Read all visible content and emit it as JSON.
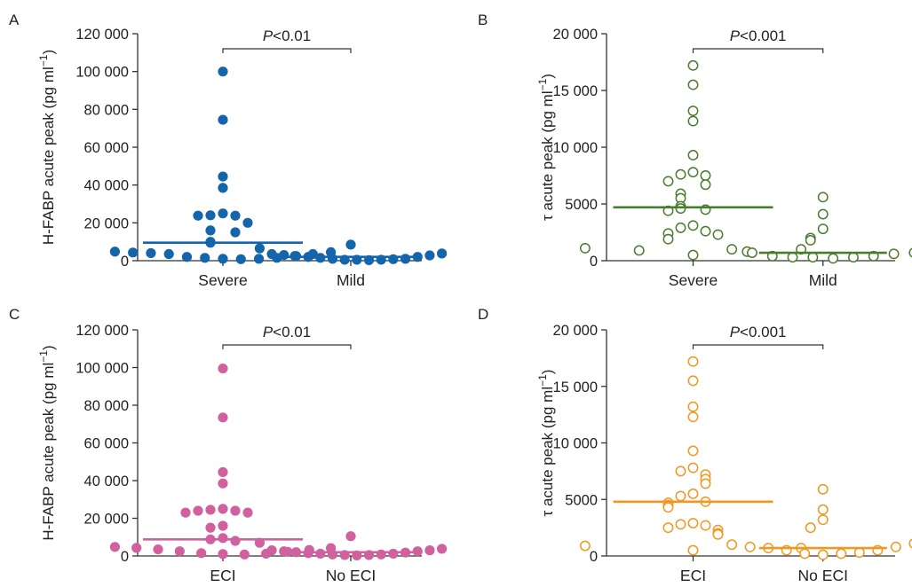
{
  "chart_data": [
    {
      "panel": "A",
      "type": "scatter",
      "ylabel": "H-FABP acute peak (pg ml−1)",
      "ylabel_parts": [
        "H-FABP acute peak (pg ml",
        "−1",
        ")"
      ],
      "ylim": [
        0,
        120000
      ],
      "yticks": [
        0,
        20000,
        40000,
        60000,
        80000,
        100000,
        120000
      ],
      "ytick_labels": [
        "0",
        "20 000",
        "40 000",
        "60 000",
        "80 000",
        "100 000",
        "120 000"
      ],
      "categories": [
        "Severe",
        "Mild"
      ],
      "marker": "filled",
      "color": "#1565ad",
      "significance": {
        "prefix": "P",
        "text": "<0.01"
      },
      "series": [
        {
          "category": "Severe",
          "median": 9500,
          "values": [
            100000,
            74500,
            44500,
            38500,
            25000,
            23800,
            24000,
            23800,
            20000,
            16000,
            15000,
            10000,
            9500,
            4800,
            4300,
            4000,
            3500,
            2000,
            1500,
            1000,
            800,
            1000,
            1500,
            2500,
            3500,
            4500
          ]
        },
        {
          "category": "Mild",
          "median": 2000,
          "values": [
            6500,
            8500,
            3500,
            3000,
            2500,
            2000,
            1500,
            1000,
            500,
            500,
            300,
            500,
            800,
            1000,
            2000,
            2800,
            3800
          ]
        }
      ]
    },
    {
      "panel": "B",
      "type": "scatter",
      "ylabel": "τ acute peak (pg ml−1)",
      "ylabel_parts": [
        "τ acute peak (pg ml",
        "−1",
        ")"
      ],
      "ylim": [
        0,
        20000
      ],
      "yticks": [
        0,
        5000,
        10000,
        15000,
        20000
      ],
      "ytick_labels": [
        "0",
        "5000",
        "10 000",
        "15 000",
        "20 000"
      ],
      "categories": [
        "Severe",
        "Mild"
      ],
      "marker": "open",
      "color": "#4a7c30",
      "significance": {
        "prefix": "P",
        "text": "<0.001"
      },
      "series": [
        {
          "category": "Severe",
          "median": 4700,
          "values": [
            17200,
            15500,
            13200,
            12300,
            9300,
            7800,
            7500,
            7600,
            7000,
            6700,
            5900,
            5500,
            4800,
            4500,
            4400,
            4600,
            3100,
            2900,
            2600,
            2300,
            2400,
            1900,
            1100,
            900,
            500,
            800,
            1000
          ]
        },
        {
          "category": "Mild",
          "median": 700,
          "values": [
            5600,
            4100,
            2800,
            2000,
            1800,
            1000,
            700,
            400,
            300,
            300,
            200,
            300,
            400,
            600,
            700
          ]
        }
      ]
    },
    {
      "panel": "C",
      "type": "scatter",
      "ylabel": "H-FABP acute peak (pg ml−1)",
      "ylabel_parts": [
        "H-FABP acute peak (pg ml",
        "−1",
        ")"
      ],
      "ylim": [
        0,
        120000
      ],
      "yticks": [
        0,
        20000,
        40000,
        60000,
        80000,
        100000,
        120000
      ],
      "ytick_labels": [
        "0",
        "20 000",
        "40 000",
        "60 000",
        "80 000",
        "100 000",
        "120 000"
      ],
      "categories": [
        "ECI",
        "No ECI"
      ],
      "marker": "filled",
      "color": "#d0609e",
      "significance": {
        "prefix": "P",
        "text": "<0.01"
      },
      "series": [
        {
          "category": "ECI",
          "median": 8800,
          "values": [
            99500,
            73500,
            44500,
            38500,
            25000,
            24000,
            23000,
            24500,
            23000,
            24000,
            16000,
            15000,
            9500,
            8800,
            8000,
            4800,
            4300,
            3500,
            2500,
            1500,
            1000,
            800,
            1200,
            2200,
            3200,
            4200
          ]
        },
        {
          "category": "No ECI",
          "median": 2000,
          "values": [
            10500,
            7000,
            3000,
            2500,
            2000,
            1500,
            1200,
            800,
            500,
            300,
            500,
            800,
            1200,
            1800,
            2500,
            3000,
            3800
          ]
        }
      ]
    },
    {
      "panel": "D",
      "type": "scatter",
      "ylabel": "τ acute peak (pg ml−1)",
      "ylabel_parts": [
        "τ acute peak (pg ml",
        "−1",
        ")"
      ],
      "ylim": [
        0,
        20000
      ],
      "yticks": [
        0,
        5000,
        10000,
        15000,
        20000
      ],
      "ytick_labels": [
        "0",
        "5000",
        "10 000",
        "15 000",
        "20 000"
      ],
      "categories": [
        "ECI",
        "No ECI"
      ],
      "marker": "open",
      "color": "#f2971f",
      "significance": {
        "prefix": "P",
        "text": "<0.001"
      },
      "series": [
        {
          "category": "ECI",
          "median": 4800,
          "values": [
            17200,
            15500,
            13200,
            12300,
            9300,
            7800,
            7200,
            7500,
            6800,
            6400,
            5500,
            5300,
            4800,
            4700,
            4500,
            4300,
            2900,
            2700,
            2500,
            2300,
            2000,
            1900,
            900,
            500,
            700,
            2800
          ]
        },
        {
          "category": "No ECI",
          "median": 700,
          "values": [
            5900,
            4100,
            3200,
            2500,
            1000,
            800,
            700,
            500,
            200,
            100,
            200,
            300,
            500,
            800,
            1100
          ]
        }
      ]
    }
  ]
}
